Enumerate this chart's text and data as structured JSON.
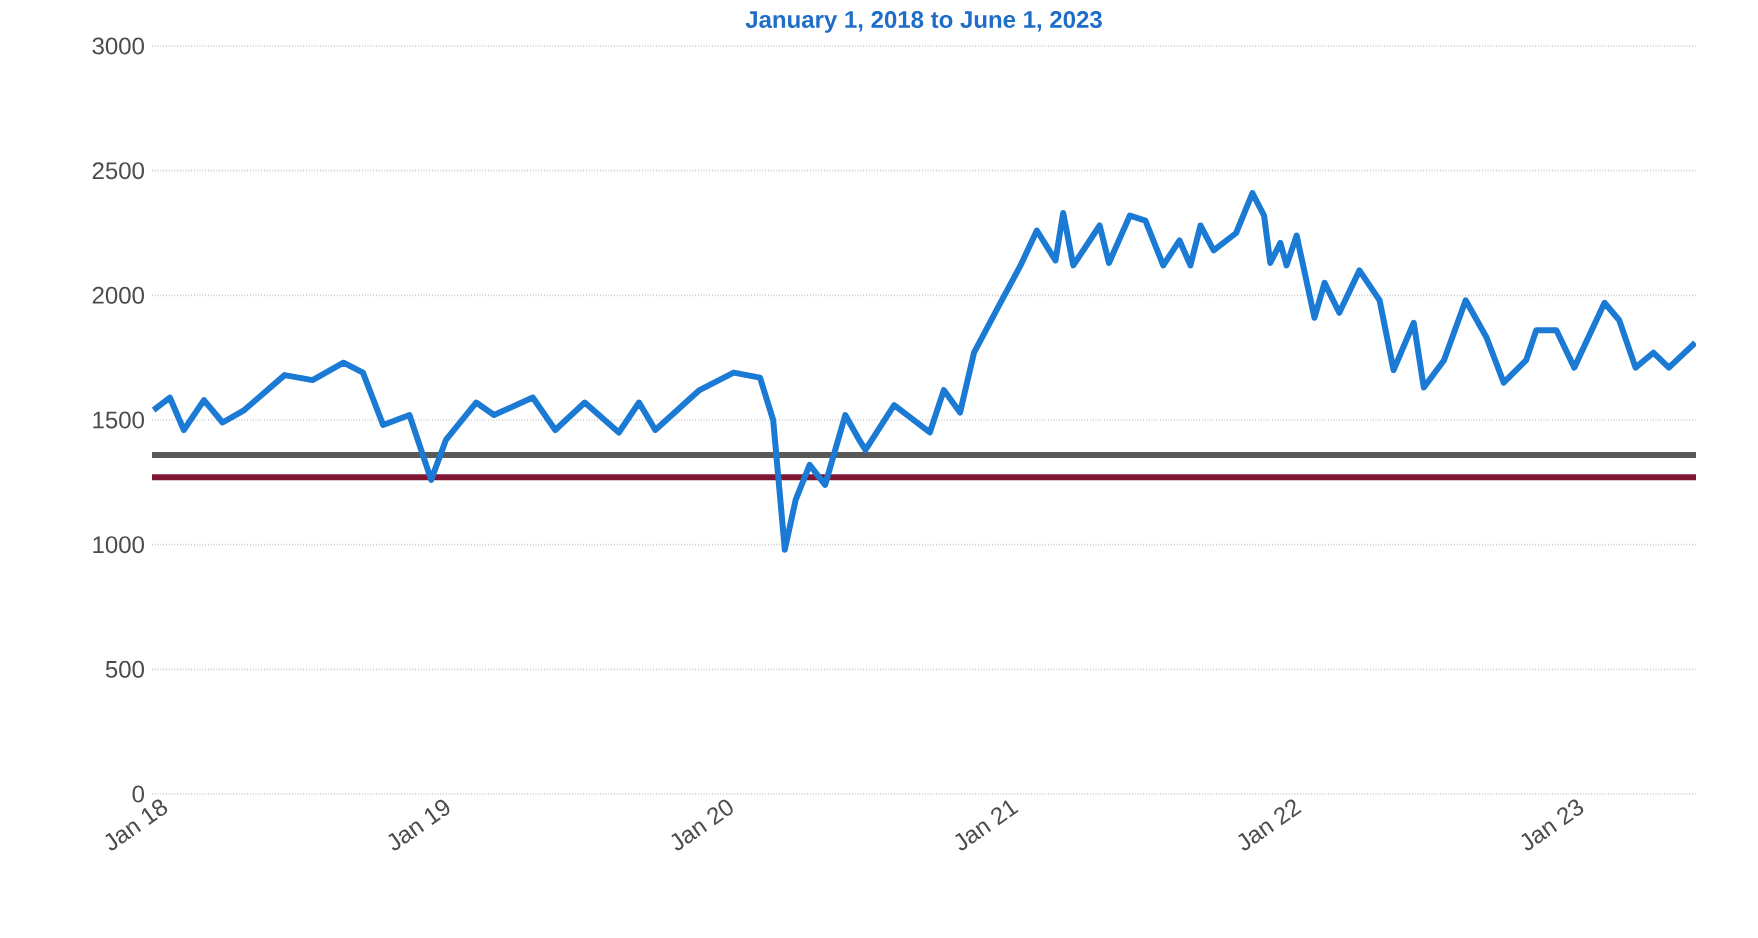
{
  "chart_data": {
    "type": "line",
    "title": "January 1, 2018 to June 1, 2023",
    "x": [
      "2018-01-03",
      "2018-01-24",
      "2018-02-11",
      "2018-03-09",
      "2018-04-02",
      "2018-04-30",
      "2018-06-21",
      "2018-07-27",
      "2018-09-05",
      "2018-09-30",
      "2018-10-26",
      "2018-11-29",
      "2018-12-27",
      "2019-01-15",
      "2019-02-23",
      "2019-03-18",
      "2019-05-07",
      "2019-06-05",
      "2019-07-13",
      "2019-08-26",
      "2019-09-21",
      "2019-10-12",
      "2019-12-08",
      "2020-01-21",
      "2020-02-24",
      "2020-03-12",
      "2020-03-27",
      "2020-04-10",
      "2020-04-28",
      "2020-05-18",
      "2020-06-13",
      "2020-07-01",
      "2020-07-09",
      "2020-08-15",
      "2020-09-30",
      "2020-10-18",
      "2020-11-08",
      "2020-11-26",
      "2020-12-30",
      "2021-01-25",
      "2021-02-15",
      "2021-03-11",
      "2021-03-21",
      "2021-04-03",
      "2021-05-07",
      "2021-05-19",
      "2021-06-15",
      "2021-07-05",
      "2021-07-28",
      "2021-08-18",
      "2021-09-01",
      "2021-09-14",
      "2021-10-01",
      "2021-10-30",
      "2021-11-20",
      "2021-12-05",
      "2021-12-13",
      "2021-12-26",
      "2022-01-03",
      "2022-01-16",
      "2022-02-08",
      "2022-02-21",
      "2022-03-12",
      "2022-04-07",
      "2022-05-03",
      "2022-05-21",
      "2022-06-16",
      "2022-06-29",
      "2022-07-25",
      "2022-08-22",
      "2022-09-18",
      "2022-10-10",
      "2022-11-08",
      "2022-11-21",
      "2022-12-17",
      "2023-01-09",
      "2023-02-17",
      "2023-03-08",
      "2023-03-29",
      "2023-04-21",
      "2023-05-11",
      "2023-06-14"
    ],
    "series": [
      {
        "color": "#1a7ad4",
        "values": [
          1540,
          1590,
          1460,
          1580,
          1490,
          1540,
          1680,
          1660,
          1730,
          1690,
          1480,
          1520,
          1260,
          1420,
          1570,
          1520,
          1590,
          1460,
          1570,
          1450,
          1570,
          1460,
          1620,
          1690,
          1670,
          1500,
          980,
          1180,
          1320,
          1240,
          1520,
          1420,
          1380,
          1560,
          1450,
          1620,
          1530,
          1770,
          1970,
          2120,
          2260,
          2140,
          2330,
          2120,
          2280,
          2130,
          2320,
          2300,
          2120,
          2220,
          2120,
          2280,
          2180,
          2250,
          2410,
          2320,
          2130,
          2210,
          2120,
          2240,
          1910,
          2050,
          1930,
          2100,
          1980,
          1700,
          1890,
          1630,
          1740,
          1980,
          1830,
          1650,
          1740,
          1860,
          1860,
          1710,
          1970,
          1900,
          1710,
          1770,
          1710,
          1810
        ]
      }
    ],
    "ref_lines": [
      {
        "axis": "y",
        "value": 1360,
        "color": "#595959"
      },
      {
        "axis": "y",
        "value": 1270,
        "color": "#7f1734"
      }
    ],
    "xlim": [
      "2018-01-01",
      "2023-06-15"
    ],
    "xticks": [
      {
        "value": "2018-01-01",
        "label": "Jan 18"
      },
      {
        "value": "2019-01-01",
        "label": "Jan 19"
      },
      {
        "value": "2020-01-01",
        "label": "Jan 20"
      },
      {
        "value": "2021-01-01",
        "label": "Jan 21"
      },
      {
        "value": "2022-01-01",
        "label": "Jan 22"
      },
      {
        "value": "2023-01-01",
        "label": "Jan 23"
      }
    ],
    "ylim": [
      0,
      3000
    ],
    "yticks": [
      0,
      500,
      1000,
      1500,
      2000,
      2500,
      3000
    ],
    "grid": "y",
    "marker": "none",
    "line_style": "solid"
  }
}
